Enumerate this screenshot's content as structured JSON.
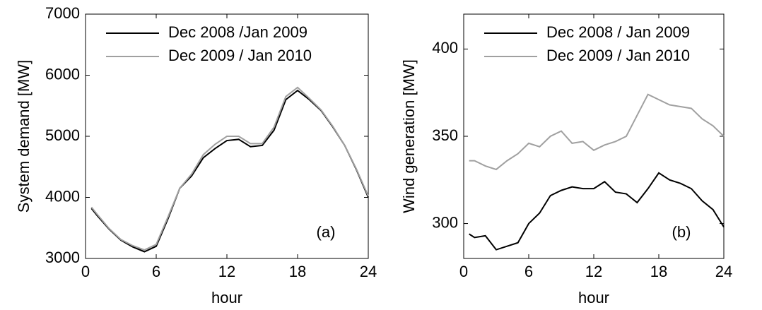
{
  "chart_data": [
    {
      "type": "line",
      "xlabel": "hour",
      "ylabel": "System demand [MW]",
      "annotation": "(a)",
      "legend": "upper left",
      "grid": false,
      "x": [
        0.5,
        1,
        2,
        3,
        4,
        5,
        6,
        7,
        8,
        9,
        10,
        11,
        12,
        13,
        14,
        15,
        16,
        17,
        18,
        19,
        20,
        21,
        22,
        23,
        24
      ],
      "xlim": [
        0,
        24
      ],
      "xticks": [
        0,
        6,
        12,
        18,
        24
      ],
      "ylim": [
        3000,
        7000
      ],
      "yticks": [
        3000,
        4000,
        5000,
        6000,
        7000
      ],
      "series": [
        {
          "name": "Dec 2008 /Jan 2009",
          "color": "#000000",
          "values": [
            3820,
            3700,
            3480,
            3300,
            3190,
            3110,
            3200,
            3650,
            4150,
            4350,
            4650,
            4800,
            4930,
            4950,
            4830,
            4850,
            5100,
            5600,
            5750,
            5600,
            5420,
            5150,
            4850,
            4450,
            4000
          ]
        },
        {
          "name": "Dec 2009 / Jan 2010",
          "color": "#a0a0a0",
          "values": [
            3840,
            3720,
            3490,
            3310,
            3210,
            3140,
            3230,
            3680,
            4150,
            4380,
            4700,
            4870,
            5000,
            5000,
            4880,
            4880,
            5150,
            5650,
            5800,
            5620,
            5430,
            5160,
            4850,
            4460,
            4020
          ]
        }
      ]
    },
    {
      "type": "line",
      "xlabel": "hour",
      "ylabel": "Wind generation [MW]",
      "annotation": "(b)",
      "legend": "upper left",
      "grid": false,
      "x": [
        0.5,
        1,
        2,
        3,
        4,
        5,
        6,
        7,
        8,
        9,
        10,
        11,
        12,
        13,
        14,
        15,
        16,
        17,
        18,
        19,
        20,
        21,
        22,
        23,
        24
      ],
      "xlim": [
        0,
        24
      ],
      "xticks": [
        0,
        6,
        12,
        18,
        24
      ],
      "ylim": [
        280,
        420
      ],
      "yticks": [
        300,
        350,
        400
      ],
      "series": [
        {
          "name": "Dec 2008 / Jan 2009",
          "color": "#000000",
          "values": [
            294,
            292,
            293,
            285,
            287,
            289,
            300,
            306,
            316,
            319,
            321,
            320,
            320,
            324,
            318,
            317,
            312,
            320,
            329,
            325,
            323,
            320,
            313,
            308,
            298
          ]
        },
        {
          "name": "Dec 2009 / Jan 2010",
          "color": "#a0a0a0",
          "values": [
            336,
            336,
            333,
            331,
            336,
            340,
            346,
            344,
            350,
            353,
            346,
            347,
            342,
            345,
            347,
            350,
            362,
            374,
            371,
            368,
            367,
            366,
            360,
            356,
            350
          ]
        }
      ]
    }
  ]
}
